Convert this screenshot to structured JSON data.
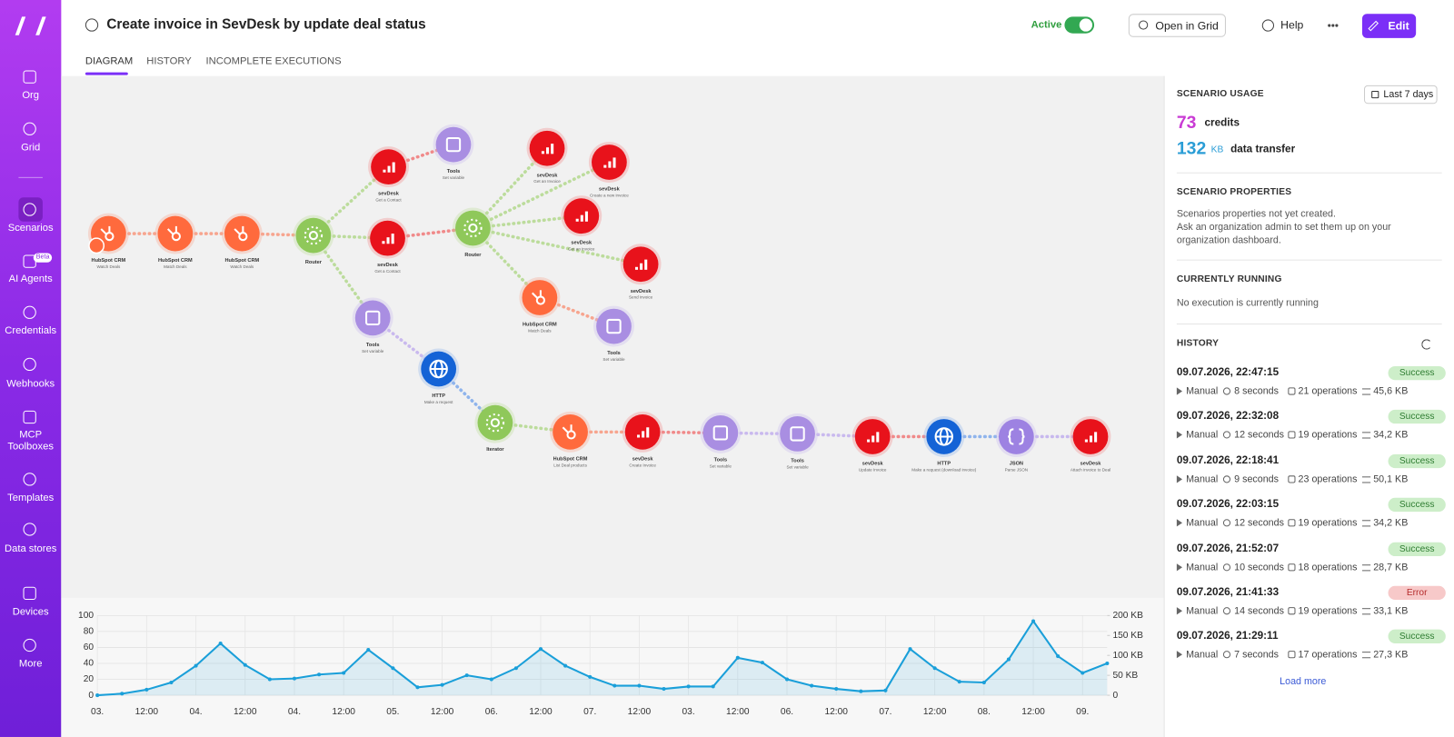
{
  "header": {
    "title": "Create invoice in SevDesk by update deal status",
    "status": "Active",
    "active": true,
    "open_grid": "Open in Grid",
    "help": "Help",
    "edit": "Edit"
  },
  "tabs": [
    "DIAGRAM",
    "HISTORY",
    "INCOMPLETE EXECUTIONS"
  ],
  "sidebar": [
    {
      "label": "Org"
    },
    {
      "label": "Grid"
    },
    {
      "label": "Scenarios",
      "active": true
    },
    {
      "label": "AI Agents",
      "badge": "Beta"
    },
    {
      "label": "Credentials"
    },
    {
      "label": "Webhooks"
    },
    {
      "label": "MCP Toolboxes"
    },
    {
      "label": "Templates"
    },
    {
      "label": "Data stores"
    },
    {
      "label": "Devices"
    },
    {
      "label": "More"
    }
  ],
  "panel": {
    "usage": {
      "title": "SCENARIO USAGE",
      "range": "Last 7 days",
      "credits": 73,
      "credits_label": "credits",
      "transfer": 132,
      "transfer_unit": "KB",
      "transfer_label": "data transfer"
    },
    "properties": {
      "title": "SCENARIO PROPERTIES",
      "lines": [
        "Scenarios properties not yet created.",
        "Ask an organization admin to set them up on your organization dashboard."
      ]
    },
    "running": {
      "title": "CURRENTLY RUNNING",
      "text": "No execution is currently running"
    },
    "history": {
      "title": "HISTORY",
      "load_more": "Load more",
      "items": [
        {
          "time": "09.07.2026, 22:47:15",
          "trigger": "Manual",
          "duration": "8 seconds",
          "operations": "21 operations",
          "size": "45,6 KB",
          "status": "Success"
        },
        {
          "time": "09.07.2026, 22:32:08",
          "trigger": "Manual",
          "duration": "12 seconds",
          "operations": "19 operations",
          "size": "34,2 KB",
          "status": "Success"
        },
        {
          "time": "09.07.2026, 22:18:41",
          "trigger": "Manual",
          "duration": "9 seconds",
          "operations": "23 operations",
          "size": "50,1 KB",
          "status": "Success"
        },
        {
          "time": "09.07.2026, 22:03:15",
          "trigger": "Manual",
          "duration": "12 seconds",
          "operations": "19 operations",
          "size": "34,2 KB",
          "status": "Success"
        },
        {
          "time": "09.07.2026, 21:52:07",
          "trigger": "Manual",
          "duration": "10 seconds",
          "operations": "18 operations",
          "size": "28,7 KB",
          "status": "Success"
        },
        {
          "time": "09.07.2026, 21:41:33",
          "trigger": "Manual",
          "duration": "14 seconds",
          "operations": "19 operations",
          "size": "33,1 KB",
          "status": "Error"
        },
        {
          "time": "09.07.2026, 21:29:11",
          "trigger": "Manual",
          "duration": "7 seconds",
          "operations": "17 operations",
          "size": "27,3 KB",
          "status": "Success"
        }
      ]
    }
  },
  "diagram": {
    "nodes": [
      {
        "app": "HubSpot CRM",
        "action": "Watch Deals",
        "kind": "hubspot"
      },
      {
        "app": "HubSpot CRM",
        "action": "Match Deals",
        "kind": "hubspot"
      },
      {
        "app": "HubSpot CRM",
        "action": "Watch Deals",
        "kind": "hubspot"
      },
      {
        "app": "Router",
        "kind": "router"
      },
      {
        "app": "sevDesk",
        "action": "Get a Contact",
        "kind": "sevdesk"
      },
      {
        "app": "Tools",
        "action": "Set variable",
        "kind": "tools"
      },
      {
        "app": "sevDesk",
        "action": "Get a Contact",
        "kind": "sevdesk"
      },
      {
        "app": "Router",
        "kind": "router"
      },
      {
        "app": "sevDesk",
        "action": "Get an Invoice",
        "kind": "sevdesk"
      },
      {
        "app": "sevDesk",
        "action": "Create a new invoice",
        "kind": "sevdesk"
      },
      {
        "app": "sevDesk",
        "action": "Get an invoice",
        "kind": "sevdesk"
      },
      {
        "app": "sevDesk",
        "action": "Send invoice",
        "kind": "sevdesk"
      },
      {
        "app": "HubSpot CRM",
        "action": "Match Deals",
        "kind": "hubspot"
      },
      {
        "app": "Tools",
        "action": "Set variable",
        "kind": "tools"
      },
      {
        "app": "Tools",
        "action": "Set variable",
        "kind": "tools"
      },
      {
        "app": "HTTP",
        "action": "Make a request",
        "kind": "http"
      },
      {
        "app": "Iterator",
        "kind": "router"
      },
      {
        "app": "HubSpot CRM",
        "action": "List Deal products",
        "kind": "hubspot"
      },
      {
        "app": "sevDesk",
        "action": "Create Invoice",
        "kind": "sevdesk"
      },
      {
        "app": "Tools",
        "action": "Set variable",
        "kind": "tools"
      },
      {
        "app": "Tools",
        "action": "Set variable",
        "kind": "tools"
      },
      {
        "app": "sevDesk",
        "action": "Update Invoice",
        "kind": "sevdesk"
      },
      {
        "app": "HTTP",
        "action": "Make a request (download invoice)",
        "kind": "http"
      },
      {
        "app": "JSON",
        "action": "Parse JSON",
        "kind": "json"
      },
      {
        "app": "sevDesk",
        "action": "Attach invoice to Deal",
        "kind": "sevdesk"
      }
    ]
  },
  "chart_data": {
    "type": "line",
    "x": [
      0,
      6,
      12,
      18,
      24,
      30,
      36,
      42,
      48,
      54,
      60,
      66,
      72,
      78,
      84,
      90,
      96,
      102,
      108,
      114,
      120,
      126,
      132,
      138,
      144,
      150,
      156,
      162,
      168,
      174,
      180,
      186,
      192,
      198,
      204,
      210,
      216,
      222,
      228,
      234,
      240,
      246
    ],
    "series": [
      {
        "color": "#1a9fd9",
        "values": [
          0,
          2,
          7,
          16,
          37,
          65,
          38,
          20,
          21,
          26,
          28,
          57,
          34,
          10,
          13,
          25,
          20,
          34,
          58,
          37,
          23,
          12,
          12,
          8,
          11,
          11,
          47,
          41,
          20,
          12,
          8,
          5,
          6,
          58,
          34,
          17,
          16,
          45,
          93,
          49,
          28,
          40
        ]
      }
    ],
    "xlim": [
      0,
      246
    ],
    "xticks": [
      {
        "value": 0,
        "label": "03."
      },
      {
        "value": 12,
        "label": "12:00"
      },
      {
        "value": 24,
        "label": "04."
      },
      {
        "value": 36,
        "label": "12:00"
      },
      {
        "value": 48,
        "label": "04."
      },
      {
        "value": 60,
        "label": "12:00"
      },
      {
        "value": 72,
        "label": "05."
      },
      {
        "value": 84,
        "label": "12:00"
      },
      {
        "value": 96,
        "label": "06."
      },
      {
        "value": 108,
        "label": "12:00"
      },
      {
        "value": 120,
        "label": "07."
      },
      {
        "value": 132,
        "label": "12:00"
      },
      {
        "value": 144,
        "label": "03."
      },
      {
        "value": 156,
        "label": "12:00"
      },
      {
        "value": 168,
        "label": "06."
      },
      {
        "value": 180,
        "label": "12:00"
      },
      {
        "value": 192,
        "label": "07."
      },
      {
        "value": 204,
        "label": "12:00"
      },
      {
        "value": 216,
        "label": "08."
      },
      {
        "value": 228,
        "label": "12:00"
      },
      {
        "value": 240,
        "label": "09."
      }
    ],
    "ylim": [
      0,
      100
    ],
    "yticks": [
      0,
      20,
      40,
      60,
      80,
      100
    ],
    "y2lim": [
      0,
      200
    ],
    "y2ticks": [
      0,
      {
        "value": 50,
        "label": "50 KB"
      },
      {
        "value": 100,
        "label": "100 KB"
      },
      {
        "value": 150,
        "label": "150 KB"
      },
      {
        "value": 200,
        "label": "200 KB"
      }
    ],
    "grid": true
  }
}
